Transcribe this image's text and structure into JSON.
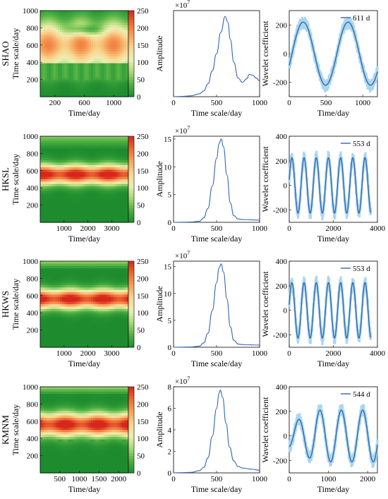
{
  "rows": [
    {
      "station": "SHAO",
      "heatmap": {
        "xlabel": "Time/day",
        "ylabel": "Time scale/day",
        "xlim": [
          0,
          1200
        ],
        "ylim": [
          0,
          1000
        ],
        "xticks": [
          200,
          600,
          1000
        ],
        "yticks": [
          200,
          400,
          600,
          800,
          1000
        ],
        "colorbar": {
          "min": 0,
          "max": 250,
          "ticks": [
            0,
            50,
            100,
            150,
            200,
            250
          ]
        }
      },
      "amplitude": {
        "type": "line",
        "xlabel": "Time scale/day",
        "ylabel": "Amplitude",
        "exponent_label": "×10",
        "exponent": "7",
        "xlim": [
          0,
          1000
        ],
        "ylim": [
          0,
          6
        ],
        "xticks": [
          0,
          500,
          1000
        ],
        "yticks": [],
        "x": [
          0,
          100,
          200,
          300,
          350,
          400,
          450,
          500,
          550,
          600,
          630,
          660,
          700,
          750,
          800,
          850,
          880,
          920,
          960,
          1000
        ],
        "y": [
          0.0,
          0.02,
          0.06,
          0.2,
          0.4,
          0.9,
          1.8,
          3.0,
          4.5,
          5.6,
          5.2,
          4.0,
          2.4,
          1.3,
          1.0,
          1.25,
          1.55,
          1.5,
          1.3,
          1.1
        ]
      },
      "wavelet": {
        "type": "line",
        "xlabel": "Time/day",
        "ylabel": "Wavelet coefficient",
        "legend": "611 d",
        "period": 611,
        "amplitude": 220,
        "phase_day": 190,
        "xlim": [
          0,
          1200
        ],
        "ylim": [
          -300,
          300
        ],
        "xticks": [
          0,
          500,
          1000
        ],
        "yticks": [
          -200,
          0,
          200
        ]
      }
    },
    {
      "station": "HKSL",
      "heatmap": {
        "xlabel": "Time/day",
        "ylabel": "Time scale/day",
        "xlim": [
          0,
          3700
        ],
        "ylim": [
          0,
          1000
        ],
        "xticks": [
          1000,
          2000,
          3000
        ],
        "yticks": [
          200,
          400,
          600,
          800,
          1000
        ],
        "colorbar": {
          "min": 0,
          "max": 250,
          "ticks": [
            0,
            50,
            100,
            150,
            200,
            250
          ]
        }
      },
      "amplitude": {
        "type": "line",
        "xlabel": "Time scale/day",
        "ylabel": "Amplitude",
        "exponent_label": "×10",
        "exponent": "7",
        "xlim": [
          0,
          1000
        ],
        "ylim": [
          0,
          15.5
        ],
        "xticks": [
          0,
          500,
          1000
        ],
        "yticks": [
          0,
          5,
          10,
          15
        ],
        "x": [
          0,
          100,
          200,
          300,
          350,
          400,
          450,
          500,
          530,
          553,
          580,
          620,
          660,
          700,
          750,
          800,
          900,
          1000
        ],
        "y": [
          0,
          0.02,
          0.05,
          0.2,
          0.8,
          2.5,
          6.5,
          11.5,
          14.2,
          15.0,
          13.6,
          8.5,
          3.5,
          1.2,
          0.6,
          0.5,
          0.45,
          0.4
        ]
      },
      "wavelet": {
        "type": "line",
        "xlabel": "Time/day",
        "ylabel": "Wavelet coefficient",
        "legend": "553 d",
        "period": 553,
        "amplitude": 225,
        "phase_day": 120,
        "xlim": [
          0,
          4000
        ],
        "ylim": [
          -300,
          400
        ],
        "xticks": [
          0,
          2000,
          4000
        ],
        "yticks": [
          -200,
          0,
          200,
          400
        ]
      }
    },
    {
      "station": "HKWS",
      "heatmap": {
        "xlabel": "Time/day",
        "ylabel": "Time scale/day",
        "xlim": [
          0,
          3700
        ],
        "ylim": [
          0,
          1000
        ],
        "xticks": [
          1000,
          2000,
          3000
        ],
        "yticks": [
          200,
          400,
          600,
          800,
          1000
        ],
        "colorbar": {
          "min": 0,
          "max": 250,
          "ticks": [
            0,
            50,
            100,
            150,
            200,
            250
          ]
        }
      },
      "amplitude": {
        "type": "line",
        "xlabel": "Time scale/day",
        "ylabel": "Amplitude",
        "exponent_label": "×10",
        "exponent": "7",
        "xlim": [
          0,
          1000
        ],
        "ylim": [
          0,
          16
        ],
        "xticks": [
          0,
          500,
          1000
        ],
        "yticks": [
          0,
          5,
          10,
          15
        ],
        "x": [
          0,
          100,
          200,
          300,
          350,
          400,
          450,
          500,
          530,
          553,
          580,
          620,
          660,
          700,
          750,
          800,
          900,
          1000
        ],
        "y": [
          0,
          0.02,
          0.05,
          0.2,
          0.8,
          2.6,
          6.8,
          12.0,
          14.8,
          15.5,
          14.0,
          9.0,
          3.8,
          1.3,
          0.6,
          0.5,
          0.45,
          0.4
        ]
      },
      "wavelet": {
        "type": "line",
        "xlabel": "Time/day",
        "ylabel": "Wavelet coefficient",
        "legend": "553 d",
        "period": 553,
        "amplitude": 225,
        "phase_day": 120,
        "xlim": [
          0,
          4000
        ],
        "ylim": [
          -300,
          400
        ],
        "xticks": [
          0,
          2000,
          4000
        ],
        "yticks": [
          -200,
          0,
          200,
          400
        ]
      }
    },
    {
      "station": "KMNM",
      "heatmap": {
        "xlabel": "Time/day",
        "ylabel": "Time scale/day",
        "xlim": [
          0,
          2250
        ],
        "ylim": [
          0,
          1000
        ],
        "xticks": [
          500,
          1000,
          1500,
          2000
        ],
        "yticks": [
          200,
          400,
          600,
          800,
          1000
        ],
        "colorbar": {
          "min": 0,
          "max": 250,
          "ticks": [
            0,
            50,
            100,
            150,
            200,
            250
          ]
        }
      },
      "amplitude": {
        "type": "line",
        "xlabel": "Time scale/day",
        "ylabel": "Amplitude",
        "exponent_label": "×10",
        "exponent": "7",
        "xlim": [
          0,
          1000
        ],
        "ylim": [
          0,
          8
        ],
        "xticks": [
          0,
          500,
          1000
        ],
        "yticks": [
          0,
          2,
          4,
          6,
          8
        ],
        "x": [
          0,
          100,
          200,
          300,
          350,
          400,
          450,
          500,
          530,
          544,
          570,
          610,
          650,
          700,
          750,
          800,
          900,
          1000
        ],
        "y": [
          0,
          0.02,
          0.05,
          0.2,
          0.5,
          1.4,
          3.4,
          6.0,
          7.4,
          7.7,
          7.0,
          4.6,
          2.4,
          1.1,
          0.6,
          0.45,
          0.35,
          0.25
        ]
      },
      "wavelet": {
        "type": "line",
        "xlabel": "Time/day",
        "ylabel": "Wavelet coefficient",
        "legend": "544 d",
        "period": 544,
        "amplitude": 210,
        "phase_day": 240,
        "xlim": [
          0,
          2250
        ],
        "ylim": [
          -300,
          400
        ],
        "xticks": [
          0,
          1000,
          2000
        ],
        "yticks": [
          -200,
          0,
          200,
          400
        ]
      }
    }
  ],
  "style": {
    "line_color": "#3566b0",
    "band_color": "#a9d7ee",
    "colormap": [
      "#1e8c2e",
      "#4db043",
      "#a8d872",
      "#ecefb5",
      "#f8d690",
      "#f6a35a",
      "#ee6a35",
      "#d7271c"
    ]
  }
}
